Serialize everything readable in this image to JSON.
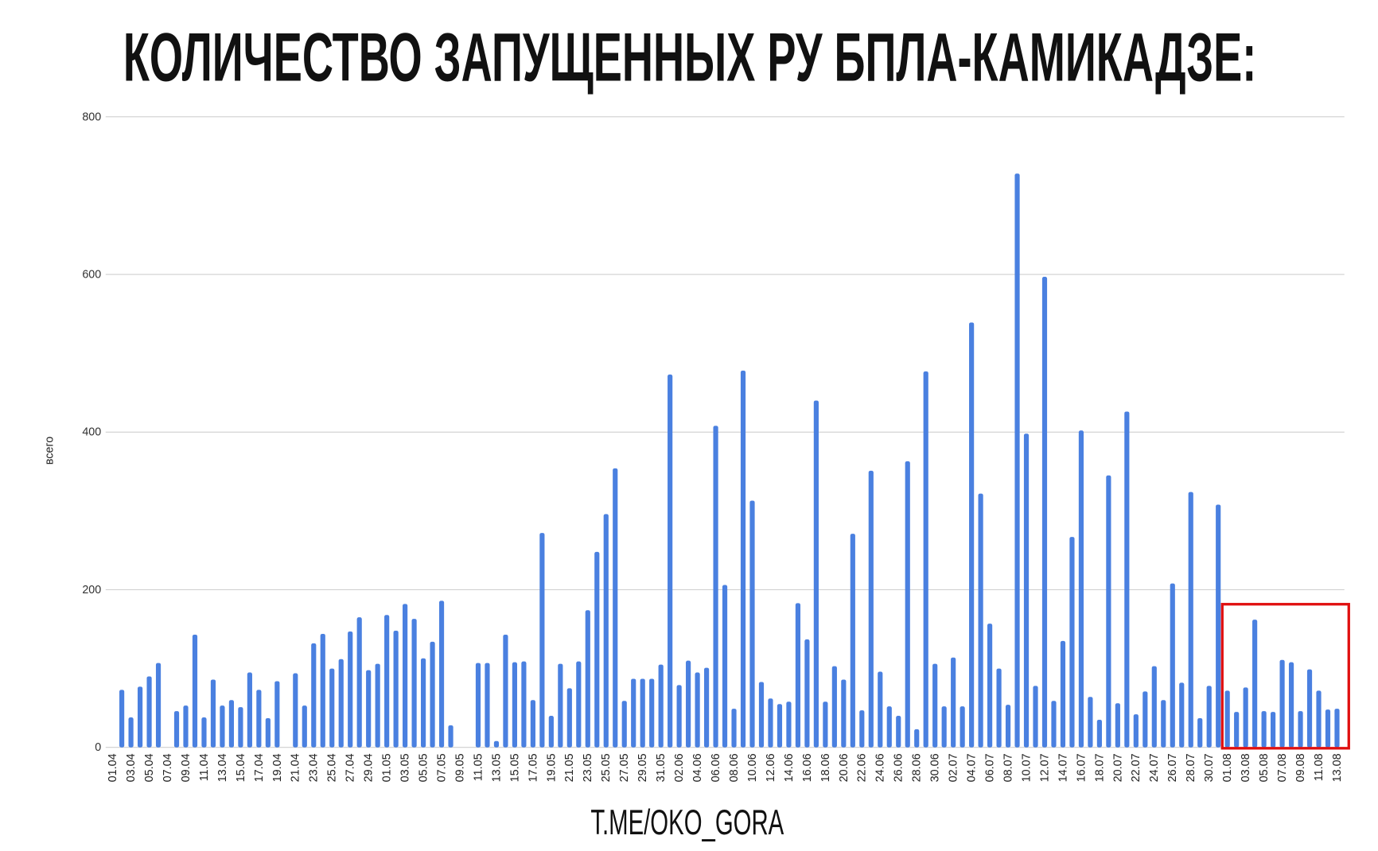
{
  "chart_data": {
    "type": "bar",
    "title": "КОЛИЧЕСТВО ЗАПУЩЕННЫХ РУ БПЛА-КАМИКАДЗЕ:",
    "y_label": "всего",
    "footer": "T.ME/OKO_GORA",
    "color": "#4a80e0",
    "grid": true,
    "ylim": [
      0,
      800
    ],
    "yticks": [
      0,
      200,
      400,
      600,
      800
    ],
    "categories": [
      "01.04",
      null,
      "03.04",
      null,
      "05.04",
      null,
      "07.04",
      null,
      "09.04",
      null,
      "11.04",
      null,
      "13.04",
      null,
      "15.04",
      null,
      "17.04",
      null,
      "19.04",
      null,
      "21.04",
      null,
      "23.04",
      null,
      "25.04",
      null,
      "27.04",
      null,
      "29.04",
      null,
      "01.05",
      null,
      "03.05",
      null,
      "05.05",
      null,
      "07.05",
      null,
      "09.05",
      null,
      "11.05",
      null,
      "13.05",
      null,
      "15.05",
      null,
      "17.05",
      null,
      "19.05",
      null,
      "21.05",
      null,
      "23.05",
      null,
      "25.05",
      null,
      "27.05",
      null,
      "29.05",
      null,
      "31.05",
      null,
      "02.06",
      null,
      "04.06",
      null,
      "06.06",
      null,
      "08.06",
      null,
      "10.06",
      null,
      "12.06",
      null,
      "14.06",
      null,
      "16.06",
      null,
      "18.06",
      null,
      "20.06",
      null,
      "22.06",
      null,
      "24.06",
      null,
      "26.06",
      null,
      "28.06",
      null,
      "30.06",
      null,
      "02.07",
      null,
      "04.07",
      null,
      "06.07",
      null,
      "08.07",
      null,
      "10.07",
      null,
      "12.07",
      null,
      "14.07",
      null,
      "16.07",
      null,
      "18.07",
      null,
      "20.07",
      null,
      "22.07",
      null,
      "24.07",
      null,
      "26.07",
      null,
      "28.07",
      null,
      "30.07",
      null,
      "01.08",
      null,
      "03.08",
      null,
      "05.08",
      null,
      "07.08",
      null,
      "09.08",
      null,
      "11.08",
      null,
      "13.08"
    ],
    "values": [
      0,
      73,
      38,
      77,
      90,
      107,
      0,
      46,
      53,
      143,
      38,
      86,
      53,
      60,
      51,
      95,
      73,
      37,
      84,
      0,
      94,
      53,
      132,
      144,
      100,
      112,
      147,
      165,
      98,
      106,
      168,
      148,
      182,
      163,
      113,
      134,
      186,
      28,
      0,
      0,
      107,
      107,
      8,
      143,
      108,
      109,
      60,
      272,
      40,
      106,
      75,
      109,
      174,
      248,
      296,
      354,
      59,
      87,
      87,
      87,
      105,
      473,
      79,
      110,
      95,
      101,
      408,
      206,
      49,
      478,
      313,
      83,
      62,
      55,
      58,
      183,
      137,
      440,
      58,
      103,
      86,
      271,
      47,
      351,
      96,
      52,
      40,
      363,
      23,
      477,
      106,
      52,
      114,
      52,
      539,
      322,
      157,
      100,
      54,
      728,
      398,
      78,
      597,
      59,
      135,
      267,
      402,
      64,
      35,
      345,
      56,
      426,
      42,
      71,
      103,
      60,
      208,
      82,
      324,
      37,
      78,
      308,
      72,
      45,
      76,
      162,
      46,
      45,
      111,
      108,
      46,
      99,
      72,
      48,
      49
    ]
  }
}
